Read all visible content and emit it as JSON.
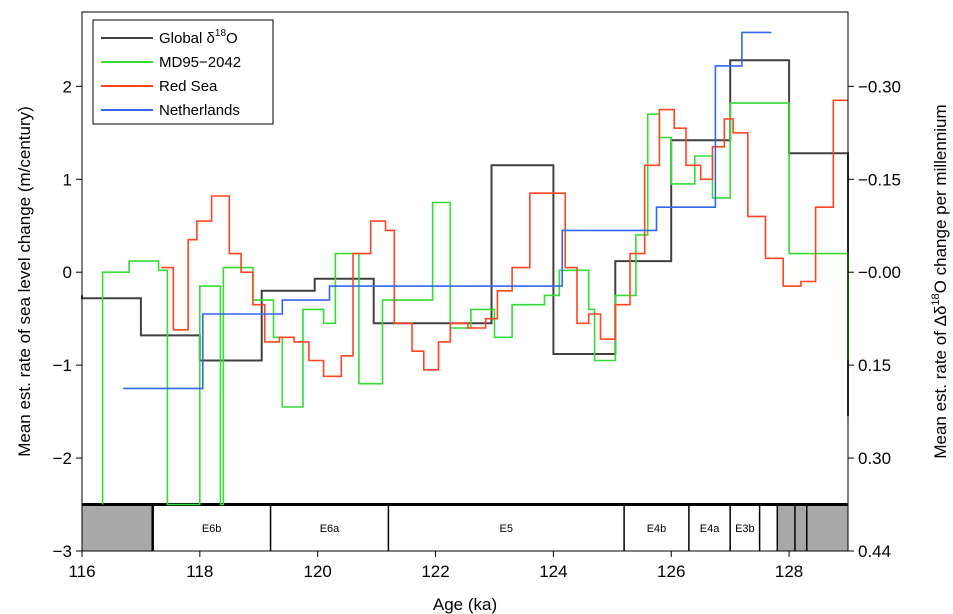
{
  "chart_data": {
    "type": "line",
    "title": "",
    "xlabel": "Age (ka)",
    "ylabel": "Mean est. rate of sea level change (m/century)",
    "ylabel_right": [
      "Mean est. rate of Δδ",
      "18",
      "O change per millennium"
    ],
    "xlim": [
      116,
      129
    ],
    "ylim": [
      -3,
      2.8
    ],
    "x_ticks": [
      116,
      118,
      120,
      122,
      124,
      126,
      128
    ],
    "y_ticks": [
      -3,
      -2,
      -1,
      0,
      1,
      2
    ],
    "y_right_ticks": [
      {
        "y": 2.0,
        "label": "−0.30"
      },
      {
        "y": 1.0,
        "label": "−0.15"
      },
      {
        "y": 0.0,
        "label": "−0.00"
      },
      {
        "y": -1.0,
        "label": "0.15"
      },
      {
        "y": -2.0,
        "label": "0.30"
      },
      {
        "y": -3.0,
        "label": "0.44"
      }
    ],
    "grid": false,
    "legend_position": "top-left",
    "legend": [
      {
        "label": "Global δ",
        "sup": "18",
        "tail": "O",
        "color": "#404040"
      },
      {
        "label": "MD95−2042",
        "sup": "",
        "tail": "",
        "color": "#33dd33"
      },
      {
        "label": "Red Sea",
        "sup": "",
        "tail": "",
        "color": "#ff4422"
      },
      {
        "label": "Netherlands",
        "sup": "",
        "tail": "",
        "color": "#3366ee"
      }
    ],
    "stages": {
      "y_top": -2.5,
      "y_bottom": -3,
      "grey_ranges": [
        [
          116,
          117.2
        ],
        [
          127.8,
          129
        ]
      ],
      "boundaries": [
        117.2,
        119.2,
        121.2,
        125.2,
        126.3,
        127.0,
        127.5,
        127.8,
        128.1,
        128.3
      ],
      "labels": [
        {
          "text": "E6b",
          "x": 118.2
        },
        {
          "text": "E6a",
          "x": 120.2
        },
        {
          "text": "E5",
          "x": 123.2
        },
        {
          "text": "E4b",
          "x": 125.75
        },
        {
          "text": "E4a",
          "x": 126.65
        },
        {
          "text": "E3b",
          "x": 127.25
        }
      ]
    },
    "series": [
      {
        "name": "Global δ18O",
        "color": "#404040",
        "points": [
          [
            116,
            -0.25
          ],
          [
            116.0,
            -0.28
          ],
          [
            117.0,
            -0.28
          ],
          [
            117.0,
            -0.68
          ],
          [
            118.0,
            -0.68
          ],
          [
            118.0,
            -0.95
          ],
          [
            119.05,
            -0.95
          ],
          [
            119.05,
            -0.2
          ],
          [
            119.95,
            -0.2
          ],
          [
            119.95,
            -0.07
          ],
          [
            120.95,
            -0.07
          ],
          [
            120.95,
            -0.55
          ],
          [
            122.95,
            -0.55
          ],
          [
            122.95,
            1.15
          ],
          [
            124.0,
            1.15
          ],
          [
            124.0,
            -0.88
          ],
          [
            125.05,
            -0.88
          ],
          [
            125.05,
            0.12
          ],
          [
            126.0,
            0.12
          ],
          [
            126.0,
            1.42
          ],
          [
            127.0,
            1.42
          ],
          [
            127.0,
            2.28
          ],
          [
            128.0,
            2.28
          ],
          [
            128.0,
            1.28
          ],
          [
            129,
            1.28
          ],
          [
            129,
            -1.55
          ]
        ]
      },
      {
        "name": "MD95−2042",
        "color": "#33dd33",
        "points": [
          [
            116.35,
            -2.5
          ],
          [
            116.35,
            0.0
          ],
          [
            116.8,
            0.0
          ],
          [
            116.8,
            0.12
          ],
          [
            117.3,
            0.12
          ],
          [
            117.3,
            0.02
          ],
          [
            117.45,
            0.02
          ],
          [
            117.45,
            -2.5
          ],
          [
            118.0,
            -2.5
          ],
          [
            118.0,
            -0.15
          ],
          [
            118.35,
            -0.15
          ],
          [
            118.35,
            -2.5
          ],
          [
            118.4,
            -2.5
          ],
          [
            118.4,
            0.05
          ],
          [
            118.9,
            0.05
          ],
          [
            118.9,
            -0.3
          ],
          [
            119.25,
            -0.3
          ],
          [
            119.25,
            -0.7
          ],
          [
            119.4,
            -0.7
          ],
          [
            119.4,
            -1.45
          ],
          [
            119.75,
            -1.45
          ],
          [
            119.75,
            -0.4
          ],
          [
            120.1,
            -0.4
          ],
          [
            120.1,
            -0.55
          ],
          [
            120.3,
            -0.55
          ],
          [
            120.3,
            0.2
          ],
          [
            120.7,
            0.2
          ],
          [
            120.7,
            -1.2
          ],
          [
            121.1,
            -1.2
          ],
          [
            121.1,
            -0.3
          ],
          [
            121.95,
            -0.3
          ],
          [
            121.95,
            0.75
          ],
          [
            122.25,
            0.75
          ],
          [
            122.25,
            -0.6
          ],
          [
            122.6,
            -0.6
          ],
          [
            122.6,
            -0.4
          ],
          [
            123.0,
            -0.4
          ],
          [
            123.0,
            -0.7
          ],
          [
            123.3,
            -0.7
          ],
          [
            123.3,
            -0.35
          ],
          [
            123.85,
            -0.35
          ],
          [
            123.85,
            -0.25
          ],
          [
            124.1,
            -0.25
          ],
          [
            124.1,
            0.02
          ],
          [
            124.6,
            0.02
          ],
          [
            124.6,
            -0.4
          ],
          [
            124.7,
            -0.4
          ],
          [
            124.7,
            -0.95
          ],
          [
            125.05,
            -0.95
          ],
          [
            125.05,
            -0.25
          ],
          [
            125.4,
            -0.25
          ],
          [
            125.4,
            0.4
          ],
          [
            125.6,
            0.4
          ],
          [
            125.6,
            1.7
          ],
          [
            125.8,
            1.7
          ],
          [
            125.8,
            1.45
          ],
          [
            126.0,
            1.45
          ],
          [
            126.0,
            0.95
          ],
          [
            126.4,
            0.95
          ],
          [
            126.4,
            1.25
          ],
          [
            126.7,
            1.25
          ],
          [
            126.7,
            0.8
          ],
          [
            127.0,
            0.8
          ],
          [
            127.0,
            1.82
          ],
          [
            127.55,
            1.82
          ],
          [
            127.55,
            1.82
          ],
          [
            128.0,
            1.82
          ],
          [
            128.0,
            0.2
          ],
          [
            129,
            0.2
          ],
          [
            129,
            -0.95
          ]
        ]
      },
      {
        "name": "Red Sea",
        "color": "#ff4422",
        "points": [
          [
            117.35,
            0.05
          ],
          [
            117.55,
            0.05
          ],
          [
            117.55,
            -0.62
          ],
          [
            117.8,
            -0.62
          ],
          [
            117.8,
            0.35
          ],
          [
            117.95,
            0.35
          ],
          [
            117.95,
            0.55
          ],
          [
            118.2,
            0.55
          ],
          [
            118.2,
            0.82
          ],
          [
            118.5,
            0.82
          ],
          [
            118.5,
            0.2
          ],
          [
            118.7,
            0.2
          ],
          [
            118.7,
            0.0
          ],
          [
            118.9,
            0.0
          ],
          [
            118.9,
            -0.35
          ],
          [
            119.1,
            -0.35
          ],
          [
            119.1,
            -0.75
          ],
          [
            119.35,
            -0.75
          ],
          [
            119.35,
            -0.7
          ],
          [
            119.6,
            -0.7
          ],
          [
            119.6,
            -0.75
          ],
          [
            119.85,
            -0.75
          ],
          [
            119.85,
            -0.95
          ],
          [
            120.1,
            -0.95
          ],
          [
            120.1,
            -1.12
          ],
          [
            120.4,
            -1.12
          ],
          [
            120.4,
            -0.9
          ],
          [
            120.6,
            -0.9
          ],
          [
            120.6,
            0.2
          ],
          [
            120.9,
            0.2
          ],
          [
            120.9,
            0.55
          ],
          [
            121.15,
            0.55
          ],
          [
            121.15,
            0.45
          ],
          [
            121.3,
            0.45
          ],
          [
            121.3,
            -0.55
          ],
          [
            121.6,
            -0.55
          ],
          [
            121.6,
            -0.85
          ],
          [
            121.8,
            -0.85
          ],
          [
            121.8,
            -1.05
          ],
          [
            122.05,
            -1.05
          ],
          [
            122.05,
            -0.75
          ],
          [
            122.25,
            -0.75
          ],
          [
            122.25,
            -0.55
          ],
          [
            122.55,
            -0.55
          ],
          [
            122.55,
            -0.6
          ],
          [
            122.85,
            -0.6
          ],
          [
            122.85,
            -0.5
          ],
          [
            123.05,
            -0.5
          ],
          [
            123.05,
            -0.2
          ],
          [
            123.3,
            -0.2
          ],
          [
            123.3,
            0.05
          ],
          [
            123.6,
            0.05
          ],
          [
            123.6,
            0.85
          ],
          [
            124.2,
            0.85
          ],
          [
            124.2,
            0.05
          ],
          [
            124.4,
            0.05
          ],
          [
            124.4,
            -0.55
          ],
          [
            124.6,
            -0.55
          ],
          [
            124.6,
            -0.45
          ],
          [
            124.8,
            -0.45
          ],
          [
            124.8,
            -0.72
          ],
          [
            125.05,
            -0.72
          ],
          [
            125.05,
            -0.35
          ],
          [
            125.3,
            -0.35
          ],
          [
            125.3,
            0.2
          ],
          [
            125.55,
            0.2
          ],
          [
            125.55,
            1.15
          ],
          [
            125.8,
            1.15
          ],
          [
            125.8,
            1.75
          ],
          [
            126.05,
            1.75
          ],
          [
            126.05,
            1.55
          ],
          [
            126.25,
            1.55
          ],
          [
            126.25,
            1.15
          ],
          [
            126.5,
            1.15
          ],
          [
            126.5,
            1.0
          ],
          [
            126.7,
            1.0
          ],
          [
            126.7,
            1.35
          ],
          [
            126.9,
            1.35
          ],
          [
            126.9,
            1.65
          ],
          [
            127.05,
            1.65
          ],
          [
            127.05,
            1.5
          ],
          [
            127.3,
            1.5
          ],
          [
            127.3,
            0.6
          ],
          [
            127.6,
            0.6
          ],
          [
            127.6,
            0.15
          ],
          [
            127.9,
            0.15
          ],
          [
            127.9,
            -0.15
          ],
          [
            128.2,
            -0.15
          ],
          [
            128.2,
            -0.1
          ],
          [
            128.45,
            -0.1
          ],
          [
            128.45,
            0.7
          ],
          [
            128.75,
            0.7
          ],
          [
            128.75,
            1.85
          ],
          [
            129,
            1.85
          ]
        ]
      },
      {
        "name": "Netherlands",
        "color": "#3366ee",
        "points": [
          [
            116.7,
            -1.25
          ],
          [
            118.05,
            -1.25
          ],
          [
            118.05,
            -0.45
          ],
          [
            119.4,
            -0.45
          ],
          [
            119.4,
            -0.3
          ],
          [
            120.2,
            -0.3
          ],
          [
            120.2,
            -0.15
          ],
          [
            124.15,
            -0.15
          ],
          [
            124.15,
            0.45
          ],
          [
            125.75,
            0.45
          ],
          [
            125.75,
            0.7
          ],
          [
            126.75,
            0.7
          ],
          [
            126.75,
            2.22
          ],
          [
            127.2,
            2.22
          ],
          [
            127.2,
            2.58
          ],
          [
            127.7,
            2.58
          ]
        ]
      }
    ]
  }
}
